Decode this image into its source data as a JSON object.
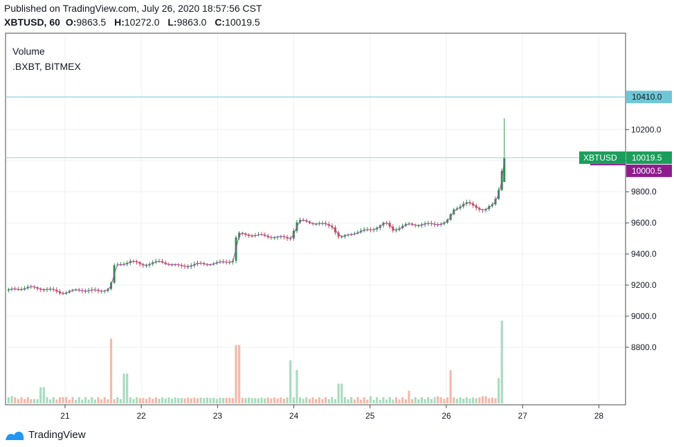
{
  "header": {
    "published": "Published on TradingView.com, July 26, 2020 18:57:56 CST",
    "symbol": "XBTUSD, 60",
    "o_label": "O:",
    "o_value": "9863.5",
    "h_label": "H:",
    "h_value": "10272.0",
    "l_label": "L:",
    "l_value": "9863.0",
    "c_label": "C:",
    "c_value": "10019.5"
  },
  "legend": {
    "line1": "Volume",
    "line2": ".BXBT, BITMEX"
  },
  "brand": {
    "name": "TradingView"
  },
  "colors": {
    "up": "#26a69a",
    "up_body": "#2f8f4e",
    "down": "#c6504b",
    "vol_up": "#a9dcbf",
    "vol_down": "#f5b9aa",
    "line": "#a64ca6",
    "bxbt_badge": "#8e1c8e",
    "xbt_badge": "#1a9e5c",
    "hline": "#6fc7d6",
    "hline_badge": "#6fc7d6",
    "grid": "#eef0f3"
  },
  "chart_data": {
    "type": "candlestick",
    "y_axis": {
      "ticks": [
        8800,
        9000,
        9200,
        9400,
        9600,
        9800,
        10000,
        10200
      ],
      "tick_labels": [
        "8800.0",
        "9000.0",
        "9200.0",
        "9400.0",
        "9600.0",
        "9800.0",
        "10000.0",
        "10200.0"
      ],
      "range": [
        8430,
        10820
      ]
    },
    "x_axis": {
      "ticks": [
        21,
        22,
        23,
        24,
        25,
        26,
        27,
        28
      ],
      "tick_labels": [
        "21",
        "22",
        "23",
        "24",
        "25",
        "26",
        "27",
        "28"
      ],
      "range": [
        20.22,
        28.35
      ]
    },
    "horizontal_line": {
      "value": 10410.0,
      "label": "10410.0"
    },
    "last_price": {
      "symbol": "XBTUSD",
      "value": 10019.5,
      "label": "10019.5"
    },
    "index_price": {
      "symbol": ".BXBT",
      "value": 10000.5,
      "label": "10000.5"
    },
    "series": [
      {
        "name": "XBTUSD",
        "kind": "candles",
        "points": [
          [
            20.25,
            9165
          ],
          [
            20.5,
            9185
          ],
          [
            20.75,
            9175
          ],
          [
            20.95,
            9150
          ],
          [
            21.2,
            9170
          ],
          [
            21.45,
            9160
          ],
          [
            21.6,
            9185
          ],
          [
            21.62,
            9315
          ],
          [
            21.85,
            9355
          ],
          [
            22.0,
            9330
          ],
          [
            22.25,
            9350
          ],
          [
            22.5,
            9320
          ],
          [
            22.75,
            9335
          ],
          [
            23.0,
            9340
          ],
          [
            23.2,
            9360
          ],
          [
            23.25,
            9530
          ],
          [
            23.5,
            9520
          ],
          [
            23.75,
            9510
          ],
          [
            23.95,
            9500
          ],
          [
            24.05,
            9615
          ],
          [
            24.25,
            9600
          ],
          [
            24.5,
            9580
          ],
          [
            24.6,
            9500
          ],
          [
            24.8,
            9540
          ],
          [
            25.0,
            9555
          ],
          [
            25.2,
            9600
          ],
          [
            25.3,
            9555
          ],
          [
            25.5,
            9590
          ],
          [
            25.75,
            9590
          ],
          [
            26.0,
            9600
          ],
          [
            26.1,
            9690
          ],
          [
            26.25,
            9730
          ],
          [
            26.5,
            9680
          ],
          [
            26.62,
            9720
          ],
          [
            26.7,
            9840
          ],
          [
            26.75,
            10019.5
          ]
        ]
      },
      {
        "name": "Volume",
        "kind": "volume",
        "values": [
          [
            20.3,
            0.08
          ],
          [
            20.6,
            0.05
          ],
          [
            20.7,
            0.18
          ],
          [
            21.0,
            0.07
          ],
          [
            21.6,
            0.72
          ],
          [
            21.8,
            0.33
          ],
          [
            22.0,
            0.06
          ],
          [
            22.5,
            0.06
          ],
          [
            23.0,
            0.05
          ],
          [
            23.27,
            0.65
          ],
          [
            23.5,
            0.06
          ],
          [
            23.95,
            0.48
          ],
          [
            24.05,
            0.37
          ],
          [
            24.6,
            0.22
          ],
          [
            25.0,
            0.08
          ],
          [
            25.5,
            0.14
          ],
          [
            25.9,
            0.08
          ],
          [
            26.05,
            0.37
          ],
          [
            26.5,
            0.08
          ],
          [
            26.7,
            0.28
          ],
          [
            26.75,
            0.92
          ]
        ]
      }
    ]
  }
}
